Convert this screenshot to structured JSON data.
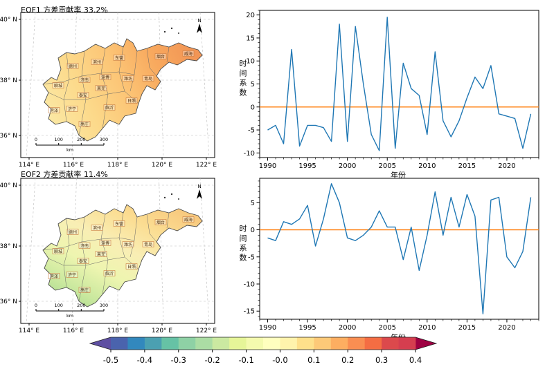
{
  "panels": {
    "eof1_map": {
      "title": "EOF1 方差贡献率 33.2%"
    },
    "eof2_map": {
      "title": "EOF2 方差贡献率 11.4%"
    }
  },
  "map_common": {
    "xticks": [
      "114° E",
      "116° E",
      "118° E",
      "120° E",
      "122° E"
    ],
    "yticks": [
      "40° N",
      "38° N",
      "36° N"
    ],
    "scalebar_ticks": [
      "0",
      "100",
      "200",
      "300"
    ],
    "scalebar_unit": "km",
    "north_label": "N",
    "cities": [
      "德州",
      "滨州",
      "东营",
      "烟台",
      "威海",
      "聊城",
      "济南",
      "淄博",
      "潍坊",
      "青岛",
      "泰安",
      "莱芜",
      "日照",
      "菏泽",
      "济宁",
      "枣庄",
      "临沂"
    ]
  },
  "map_colors": {
    "eof1_gradient": [
      "#fbe7a2",
      "#fcd98a",
      "#fcc576",
      "#f8a95e",
      "#f29555"
    ],
    "eof2_gradient": [
      "#9fd489",
      "#c9e89e",
      "#eef5b0",
      "#f9eeb4",
      "#fbdd92",
      "#f8c97e"
    ],
    "border_color": "#666666",
    "outline_color": "#4a4a4a"
  },
  "chart_data": [
    {
      "id": "pc1",
      "type": "line",
      "title": "",
      "xlabel": "年份",
      "ylabel": "时间系数",
      "x": [
        1990,
        1991,
        1992,
        1993,
        1994,
        1995,
        1996,
        1997,
        1998,
        1999,
        2000,
        2001,
        2002,
        2003,
        2004,
        2005,
        2006,
        2007,
        2008,
        2009,
        2010,
        2011,
        2012,
        2013,
        2014,
        2015,
        2016,
        2017,
        2018,
        2019,
        2020,
        2021,
        2022,
        2023
      ],
      "values": [
        -5,
        -4,
        -8,
        12.5,
        -8.5,
        -4,
        -4,
        -4.5,
        -7.5,
        18,
        -7.5,
        17.5,
        5,
        -6,
        -9.5,
        19.5,
        -9,
        9.5,
        4,
        2.5,
        -6,
        12,
        -3,
        -6.5,
        -3,
        2,
        6.5,
        4,
        9,
        -1.5,
        -2,
        -2.5,
        -9,
        -1.5
      ],
      "xlim": [
        1989,
        2024
      ],
      "ylim": [
        -11,
        21
      ],
      "xticks": [
        1990,
        1995,
        2000,
        2005,
        2010,
        2015,
        2020
      ],
      "yticks": [
        -10,
        -5,
        0,
        5,
        10,
        15,
        20
      ],
      "line_color": "#1f77b4",
      "zero_line_color": "#ff7f0e",
      "zero_line_y": 0,
      "grid": false,
      "legend": "none"
    },
    {
      "id": "pc2",
      "type": "line",
      "title": "",
      "xlabel": "年份",
      "ylabel": "时间系数",
      "x": [
        1990,
        1991,
        1992,
        1993,
        1994,
        1995,
        1996,
        1997,
        1998,
        1999,
        2000,
        2001,
        2002,
        2003,
        2004,
        2005,
        2006,
        2007,
        2008,
        2009,
        2010,
        2011,
        2012,
        2013,
        2014,
        2015,
        2016,
        2017,
        2018,
        2019,
        2020,
        2021,
        2022,
        2023
      ],
      "values": [
        -1.5,
        -2,
        1.5,
        1,
        2,
        4.5,
        -3,
        2,
        8.5,
        5,
        -1.5,
        -2,
        -1,
        0.5,
        3.5,
        0.5,
        0.5,
        -5.5,
        0.5,
        -7.5,
        -1,
        7,
        -1,
        6,
        0.5,
        6.5,
        2.5,
        -15.5,
        5.5,
        6,
        -5,
        -7,
        -4,
        6
      ],
      "xlim": [
        1989,
        2024
      ],
      "ylim": [
        -16.5,
        9.5
      ],
      "xticks": [
        1990,
        1995,
        2000,
        2005,
        2010,
        2015,
        2020
      ],
      "yticks": [
        -15,
        -10,
        -5,
        0,
        5
      ],
      "line_color": "#1f77b4",
      "zero_line_color": "#ff7f0e",
      "zero_line_y": 0,
      "grid": false,
      "legend": "none"
    },
    {
      "id": "colorbar",
      "type": "colorbar",
      "tick_labels": [
        "-0.5",
        "-0.4",
        "-0.3",
        "-0.2",
        "-0.1",
        "-0.0",
        "0.1",
        "0.2",
        "0.3",
        "0.4"
      ],
      "colors": [
        "#4a63ad",
        "#3288bd",
        "#4ba0b1",
        "#66c2a5",
        "#8ed1a5",
        "#abdda4",
        "#cbe9a1",
        "#e6f598",
        "#f4faae",
        "#ffffbf",
        "#fff3ac",
        "#fee08b",
        "#fdc978",
        "#fdae61",
        "#f98e52",
        "#f46d43",
        "#dc494c",
        "#d53e4f"
      ],
      "arrow_left": "#5e4fa2",
      "arrow_right": "#9e0142"
    }
  ]
}
